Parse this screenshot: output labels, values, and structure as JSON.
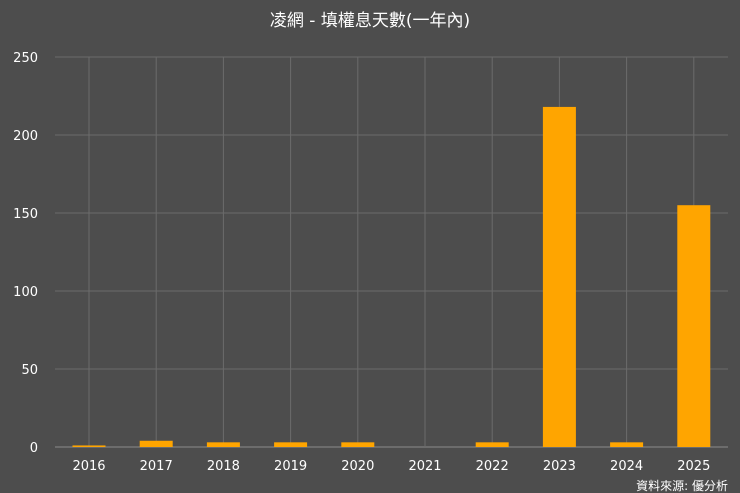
{
  "chart_data": {
    "type": "bar",
    "title": "凌網 - 填權息天數(一年內)",
    "categories": [
      "2016",
      "2017",
      "2018",
      "2019",
      "2020",
      "2021",
      "2022",
      "2023",
      "2024",
      "2025"
    ],
    "values": [
      1,
      4,
      3,
      3,
      3,
      0,
      3,
      218,
      3,
      155
    ],
    "ylim": [
      0,
      250
    ],
    "yticks": [
      0,
      50,
      100,
      150,
      200,
      250
    ],
    "xlabel": "",
    "ylabel": "",
    "grid": true,
    "bar_color": "#ffa500"
  },
  "source_label": "資料來源: 優分析"
}
